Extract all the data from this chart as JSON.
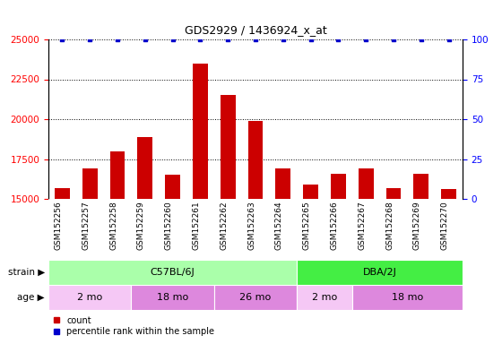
{
  "title": "GDS2929 / 1436924_x_at",
  "categories": [
    "GSM152256",
    "GSM152257",
    "GSM152258",
    "GSM152259",
    "GSM152260",
    "GSM152261",
    "GSM152262",
    "GSM152263",
    "GSM152264",
    "GSM152265",
    "GSM152266",
    "GSM152267",
    "GSM152268",
    "GSM152269",
    "GSM152270"
  ],
  "bar_values": [
    15700,
    16900,
    18000,
    18900,
    16500,
    23500,
    21500,
    19900,
    16900,
    15900,
    16600,
    16900,
    15700,
    16600,
    15600
  ],
  "percentile_values": [
    100,
    100,
    100,
    100,
    100,
    100,
    100,
    100,
    100,
    100,
    100,
    100,
    100,
    100,
    100
  ],
  "bar_color": "#cc0000",
  "dot_color": "#0000cc",
  "ylim_left": [
    15000,
    25000
  ],
  "ylim_right": [
    0,
    100
  ],
  "yticks_left": [
    15000,
    17500,
    20000,
    22500,
    25000
  ],
  "yticks_right": [
    0,
    25,
    50,
    75,
    100
  ],
  "strain_groups": [
    {
      "label": "C57BL/6J",
      "start": 0,
      "end": 9,
      "color": "#aaffaa"
    },
    {
      "label": "DBA/2J",
      "start": 9,
      "end": 15,
      "color": "#44ee44"
    }
  ],
  "age_groups": [
    {
      "label": "2 mo",
      "start": 0,
      "end": 3,
      "color": "#f5c8f5"
    },
    {
      "label": "18 mo",
      "start": 3,
      "end": 6,
      "color": "#dd88dd"
    },
    {
      "label": "26 mo",
      "start": 6,
      "end": 9,
      "color": "#dd88dd"
    },
    {
      "label": "2 mo",
      "start": 9,
      "end": 11,
      "color": "#f5c8f5"
    },
    {
      "label": "18 mo",
      "start": 11,
      "end": 15,
      "color": "#dd88dd"
    }
  ],
  "strain_label": "strain",
  "age_label": "age",
  "bg_color": "#ffffff",
  "xtick_bg_color": "#d3d3d3"
}
